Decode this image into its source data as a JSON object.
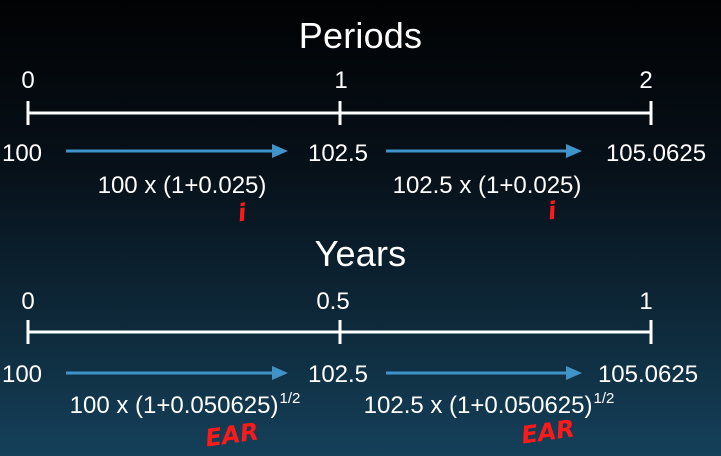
{
  "colors": {
    "white": "#ffffff",
    "arrow": "#3f93c8",
    "annotation": "#ff1a1a"
  },
  "periods": {
    "title": "Periods",
    "ticks": [
      "0",
      "1",
      "2"
    ],
    "values": [
      "100",
      "102.5",
      "105.0625"
    ],
    "formulas": [
      {
        "text": "100 x (1+0.025)",
        "exponent": ""
      },
      {
        "text": "102.5 x (1+0.025)",
        "exponent": ""
      }
    ],
    "annotations": [
      "i",
      "i"
    ]
  },
  "years": {
    "title": "Years",
    "ticks": [
      "0",
      "0.5",
      "1"
    ],
    "values": [
      "100",
      "102.5",
      "105.0625"
    ],
    "formulas": [
      {
        "text": "100 x (1+0.050625)",
        "exponent": "1/2"
      },
      {
        "text": "102.5 x (1+0.050625)",
        "exponent": "1/2"
      }
    ],
    "annotations": [
      "EAR",
      "EAR"
    ]
  }
}
